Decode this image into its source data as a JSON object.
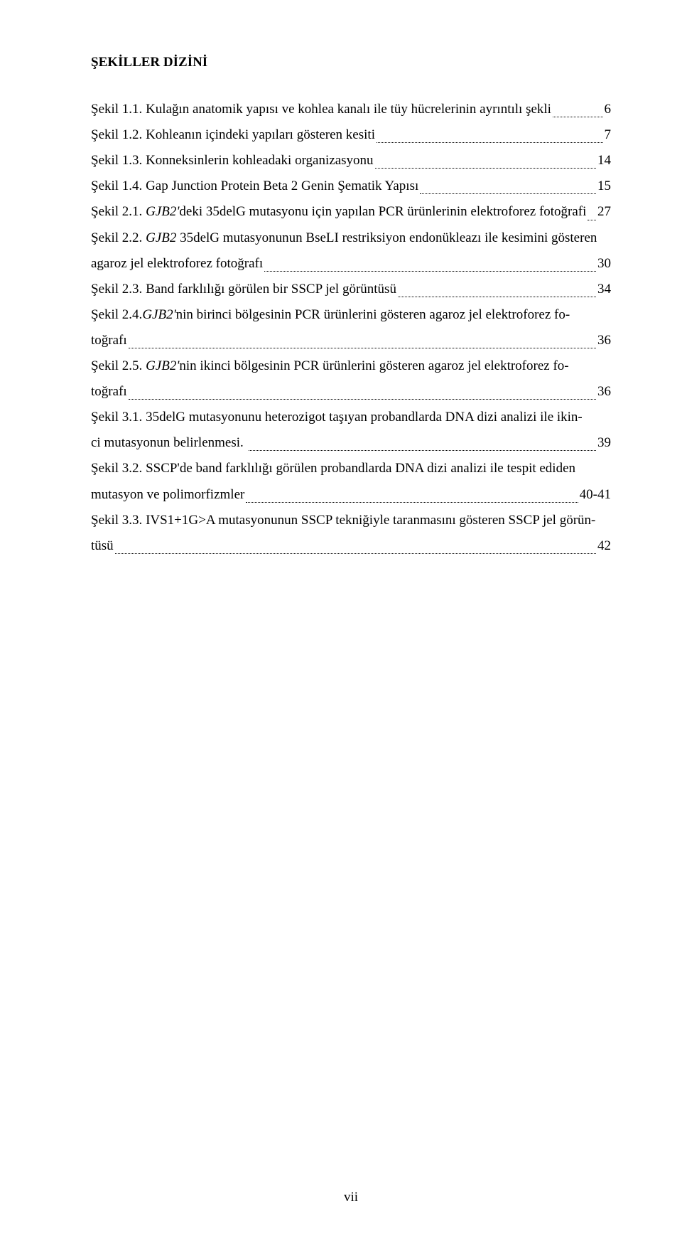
{
  "title": "ŞEKİLLER DİZİNİ",
  "entries": [
    {
      "label": "Şekil 1.1.",
      "text": " Kulağın anatomik yapısı ve kohlea kanalı ile tüy hücrelerinin ayrıntılı şekli",
      "page": "6"
    },
    {
      "label": "Şekil 1.2.",
      "text": " Kohleanın içindeki yapıları gösteren kesiti",
      "page": "7"
    },
    {
      "label": "Şekil 1.3.",
      "text": " Konneksinlerin kohleadaki organizasyonu",
      "page": "14"
    },
    {
      "label": "Şekil 1.4.",
      "text": " Gap Junction Protein Beta 2 Genin Şematik Yapısı",
      "page": "15"
    },
    {
      "label": "Şekil 2.1.",
      "textBefore": " ",
      "italic": "GJB2'",
      "textAfter": "deki 35delG mutasyonu için yapılan PCR ürünlerinin elektroforez fotoğrafi",
      "page": " 27"
    },
    {
      "label": "Şekil 2.2. ",
      "italic": "GJB2",
      "textAfter": " 35delG mutasyonunun BseLI restriksiyon endonükleazı ile kesimini gösteren",
      "cont": "agaroz jel elektroforez fotoğrafı",
      "page": "30"
    },
    {
      "label": "Şekil 2.3.",
      "text": " Band farklılığı görülen bir SSCP jel görüntüsü",
      "page": "34"
    },
    {
      "label": "Şekil 2.4.",
      "italic": "GJB2'",
      "textAfter": "nin birinci bölgesinin PCR ürünlerini gösteren agaroz jel elektroforez fo-",
      "cont": "toğrafı",
      "page": "36"
    },
    {
      "label": "Şekil 2.5. ",
      "italic": "GJB2'",
      "textAfter": "nin ikinci bölgesinin PCR ürünlerini gösteren agaroz jel elektroforez fo-",
      "cont": "toğrafı",
      "page": "36"
    },
    {
      "label": "Şekil 3.1.",
      "text": " 35delG mutasyonunu heterozigot taşıyan probandlarda DNA dizi analizi ile ikin-",
      "cont": "ci mutasyonun belirlenmesi. ",
      "page": "39"
    },
    {
      "label": "Şekil 3.2.",
      "text": " SSCP'de band farklılığı görülen probandlarda DNA dizi analizi ile tespit ediden",
      "cont": "mutasyon ve polimorfizmler",
      "page": "40-41"
    },
    {
      "label": "Şekil 3.3.",
      "text": " IVS1+1G>A mutasyonunun SSCP tekniğiyle taranmasını gösteren SSCP jel görün-",
      "cont": "tüsü",
      "page": "42"
    }
  ],
  "pageNumber": "vii"
}
